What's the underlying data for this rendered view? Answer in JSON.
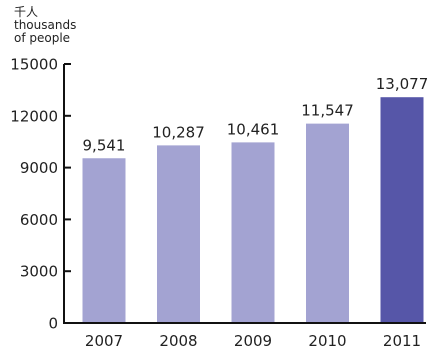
{
  "chart_data": {
    "type": "bar",
    "ylabel_lines": [
      "千人",
      "thousands",
      "of people"
    ],
    "categories": [
      "2007",
      "2008",
      "2009",
      "2010",
      "2011"
    ],
    "values": [
      9541,
      10287,
      10461,
      11547,
      13077
    ],
    "data_labels": [
      "9,541",
      "10,287",
      "10,461",
      "11,547",
      "13,077"
    ],
    "ylim": [
      0,
      15000
    ],
    "yticks": [
      0,
      3000,
      6000,
      9000,
      12000,
      15000
    ],
    "ytick_labels": [
      "0",
      "3000",
      "6000",
      "9000",
      "12000",
      "15000"
    ],
    "grid": false,
    "colors": {
      "bar": "#a3a3d2",
      "highlight_bar": "#5656a8",
      "axis": "#111111"
    },
    "highlight_index": 4
  }
}
